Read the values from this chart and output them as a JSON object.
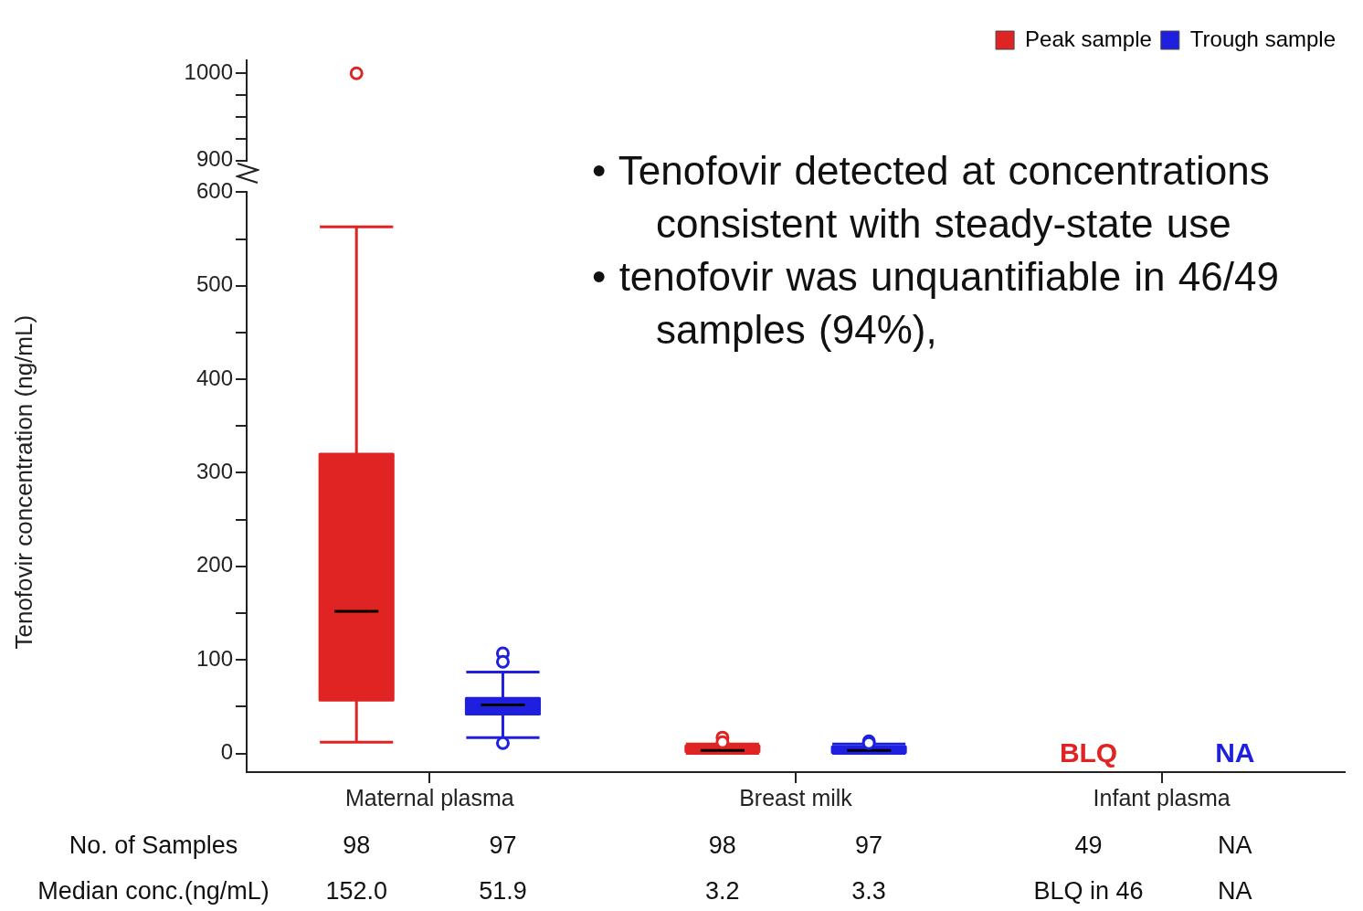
{
  "chart_data": [
    {
      "type": "scatter",
      "categories": [
        "Maternal plasma",
        "Breast milk",
        "Infant plasma"
      ],
      "series": [
        {
          "name": "Peak sample",
          "color": "#e02424",
          "x": [
            "Maternal plasma"
          ],
          "values": [
            1000
          ]
        },
        {
          "name": "Trough sample",
          "color": "#1f1fe0",
          "x": [
            "Maternal plasma",
            "Breast milk",
            "Infant plasma"
          ],
          "values": [
            null,
            null,
            null
          ]
        }
      ],
      "ylim": [
        900,
        1015
      ],
      "yticks": [
        900,
        {
          "value": 925,
          "label": null
        },
        {
          "value": 950,
          "label": null
        },
        {
          "value": 975,
          "label": null
        },
        1000
      ],
      "tick_labels": "y",
      "legend": "top right",
      "marker": "circle"
    },
    {
      "type": "box",
      "categories": [
        "Maternal plasma",
        "Breast milk",
        "Infant plasma"
      ],
      "series": [
        {
          "color": "#e02424",
          "boxes": [
            {
              "low": 12,
              "q1": 57,
              "median": 152,
              "q3": 320,
              "high": 563
            },
            {
              "low": 0,
              "q1": 2,
              "median": 3.2,
              "q3": 8,
              "high": 10,
              "outliers": [
                17,
                12
              ]
            },
            null
          ]
        },
        {
          "color": "#1f1fe0",
          "boxes": [
            {
              "low": 17,
              "q1": 42,
              "median": 51.9,
              "q3": 59,
              "high": 87,
              "outliers": [
                107,
                98,
                11
              ]
            },
            {
              "low": 0,
              "q1": 1,
              "median": 3.3,
              "q3": 7,
              "high": 10,
              "outliers": [
                13,
                11
              ]
            },
            null
          ]
        }
      ],
      "ylabel": "Tenofovir concentration (ng/mL)",
      "ylim": [
        -20,
        600
      ],
      "yticks": [
        0,
        {
          "value": 50,
          "label": null
        },
        100,
        {
          "value": 150,
          "label": null
        },
        200,
        {
          "value": 250,
          "label": null
        },
        300,
        {
          "value": 350,
          "label": null
        },
        400,
        {
          "value": 450,
          "label": null
        },
        500,
        {
          "value": 550,
          "label": null
        },
        600
      ],
      "marker": "circle",
      "annotations": [
        "• Tenofovir detected at concentrations consistent with steady-state use",
        "• tenofovir was unquantifiable in 46/49 samples (94%),",
        "BLQ",
        "NA",
        "No. of Samples",
        "98",
        "97",
        "98",
        "97",
        "49",
        "NA",
        "Median conc.(ng/mL)",
        "152.0",
        "51.9",
        "3.2",
        "3.3",
        "BLQ in 46",
        "NA"
      ]
    }
  ]
}
